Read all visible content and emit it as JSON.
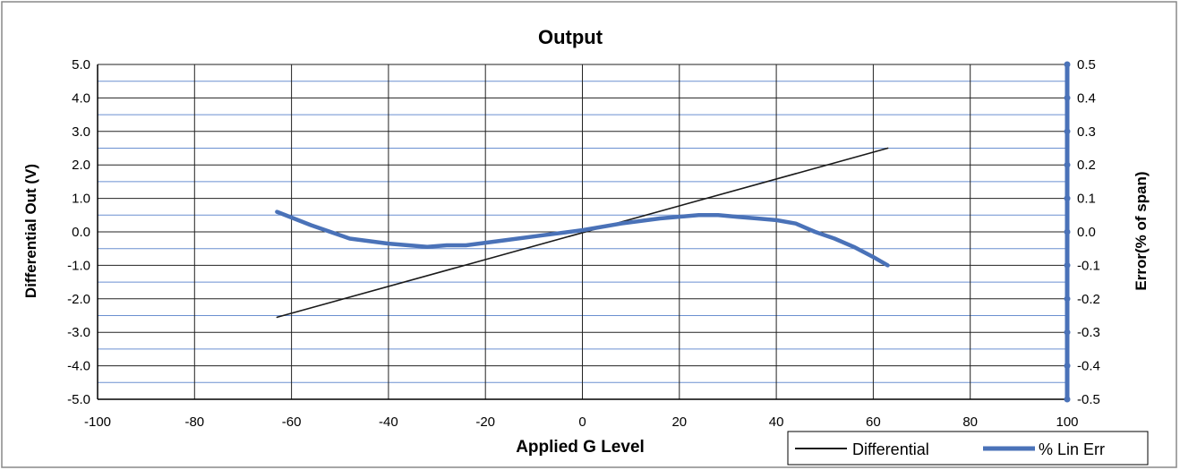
{
  "chart_data": {
    "type": "line",
    "title": "Output",
    "xlabel": "Applied G Level",
    "ylabel": "Differential  Out (V)",
    "y2label": "Error(% of span)",
    "xlim": [
      -100,
      100
    ],
    "ylim": [
      -5.0,
      5.0
    ],
    "y2lim": [
      -0.5,
      0.5
    ],
    "x_ticks": [
      "-100",
      "-80",
      "-60",
      "-40",
      "-20",
      "0",
      "20",
      "40",
      "60",
      "80",
      "100"
    ],
    "y_ticks": [
      "-5.0",
      "-4.0",
      "-3.0",
      "-2.0",
      "-1.0",
      "0.0",
      "1.0",
      "2.0",
      "3.0",
      "4.0",
      "5.0"
    ],
    "y2_ticks": [
      "-0.5",
      "-0.4",
      "-0.3",
      "-0.2",
      "-0.1",
      "0.0",
      "0.1",
      "0.2",
      "0.3",
      "0.4",
      "0.5"
    ],
    "grid": true,
    "legend_position": "bottom-right",
    "series": [
      {
        "name": "Differential",
        "axis": "left",
        "color": "#1a1a1a",
        "x": [
          -63,
          63
        ],
        "y": [
          -2.55,
          2.5
        ]
      },
      {
        "name": "% Lin Err",
        "axis": "right",
        "color": "#4a72b8",
        "x": [
          -63,
          -56,
          -48,
          -40,
          -32,
          -28,
          -24,
          -16,
          -8,
          0,
          8,
          16,
          24,
          28,
          32,
          36,
          40,
          44,
          48,
          52,
          56,
          60,
          63
        ],
        "y": [
          0.06,
          0.02,
          -0.02,
          -0.035,
          -0.045,
          -0.04,
          -0.04,
          -0.025,
          -0.01,
          0.005,
          0.025,
          0.04,
          0.05,
          0.05,
          0.045,
          0.04,
          0.035,
          0.025,
          0.0,
          -0.02,
          -0.045,
          -0.075,
          -0.1
        ]
      }
    ]
  }
}
